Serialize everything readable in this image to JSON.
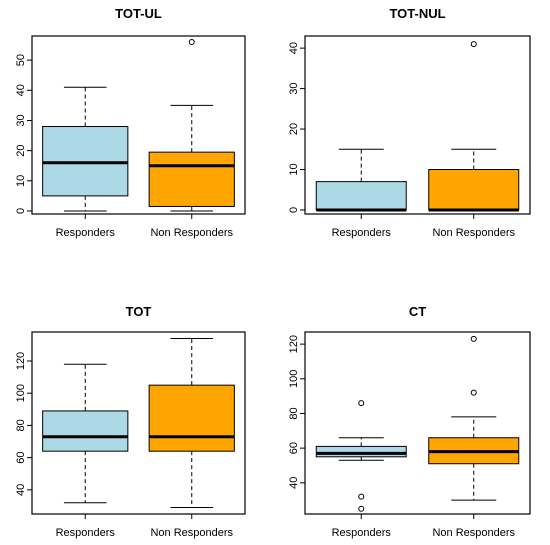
{
  "chart_data": [
    {
      "type": "box",
      "title": "TOT-UL",
      "categories": [
        "Responders",
        "Non Responders"
      ],
      "colors": [
        "#add8e6",
        "#ffa500"
      ],
      "ylim": [
        -1,
        58
      ],
      "yticks": [
        0,
        10,
        20,
        30,
        40,
        50
      ],
      "boxes": [
        {
          "name": "Responders",
          "min": 0,
          "q1": 5,
          "median": 16,
          "q3": 28,
          "max": 41,
          "outliers": []
        },
        {
          "name": "Non Responders",
          "min": 0,
          "q1": 1.5,
          "median": 15,
          "q3": 19.5,
          "max": 35,
          "outliers": [
            56
          ]
        }
      ]
    },
    {
      "type": "box",
      "title": "TOT-NUL",
      "categories": [
        "Responders",
        "Non Responders"
      ],
      "colors": [
        "#add8e6",
        "#ffa500"
      ],
      "ylim": [
        -1,
        43
      ],
      "yticks": [
        0,
        10,
        20,
        30,
        40
      ],
      "boxes": [
        {
          "name": "Responders",
          "min": 0,
          "q1": 0,
          "median": 0,
          "q3": 7,
          "max": 15,
          "outliers": []
        },
        {
          "name": "Non Responders",
          "min": 0,
          "q1": 0,
          "median": 0,
          "q3": 10,
          "max": 15,
          "outliers": [
            41
          ]
        }
      ]
    },
    {
      "type": "box",
      "title": "TOT",
      "categories": [
        "Responders",
        "Non Responders"
      ],
      "colors": [
        "#add8e6",
        "#ffa500"
      ],
      "ylim": [
        25,
        138
      ],
      "yticks": [
        40,
        60,
        80,
        100,
        120
      ],
      "boxes": [
        {
          "name": "Responders",
          "min": 32,
          "q1": 64,
          "median": 73,
          "q3": 89,
          "max": 118,
          "outliers": []
        },
        {
          "name": "Non Responders",
          "min": 29,
          "q1": 64,
          "median": 73,
          "q3": 105,
          "max": 134,
          "outliers": []
        }
      ]
    },
    {
      "type": "box",
      "title": "CT",
      "categories": [
        "Responders",
        "Non Responders"
      ],
      "colors": [
        "#add8e6",
        "#ffa500"
      ],
      "ylim": [
        22,
        127
      ],
      "yticks": [
        40,
        60,
        80,
        100,
        120
      ],
      "boxes": [
        {
          "name": "Responders",
          "min": 53,
          "q1": 55,
          "median": 57,
          "q3": 61,
          "max": 66,
          "outliers": [
            86,
            32,
            25
          ]
        },
        {
          "name": "Non Responders",
          "min": 30,
          "q1": 51,
          "median": 58,
          "q3": 66,
          "max": 78,
          "outliers": [
            92,
            123
          ]
        }
      ]
    }
  ]
}
